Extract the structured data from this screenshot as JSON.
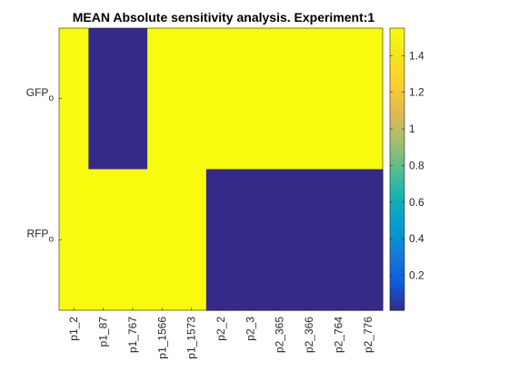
{
  "chart_data": {
    "type": "heatmap",
    "title": "MEAN Absolute sensitivity analysis. Experiment:1",
    "x_labels": [
      "p1_2",
      "p1_87",
      "p1_767",
      "p1_1566",
      "p1_1573",
      "p2_2",
      "p2_3",
      "p2_365",
      "p2_366",
      "p2_764",
      "p2_776"
    ],
    "y_labels": [
      {
        "main": "GFP",
        "sub": "o"
      },
      {
        "main": "RFP",
        "sub": "o"
      }
    ],
    "values": [
      [
        1.55,
        0.01,
        0.01,
        1.55,
        1.55,
        1.55,
        1.55,
        1.55,
        1.55,
        1.55,
        1.55
      ],
      [
        1.55,
        1.55,
        1.55,
        1.55,
        1.55,
        0.01,
        0.01,
        0.01,
        0.01,
        0.01,
        0.01
      ]
    ],
    "colormap": "parula",
    "clim": [
      0.01,
      1.55
    ],
    "colorbar": {
      "ticks": [
        0.2,
        0.4,
        0.6,
        0.8,
        1,
        1.2,
        1.4
      ],
      "tick_labels": [
        "0.2",
        "0.4",
        "0.6",
        "0.8",
        "1",
        "1.2",
        "1.4"
      ],
      "location": "right"
    },
    "colors": {
      "high": "#F9FB0E",
      "low": "#352A87"
    }
  }
}
